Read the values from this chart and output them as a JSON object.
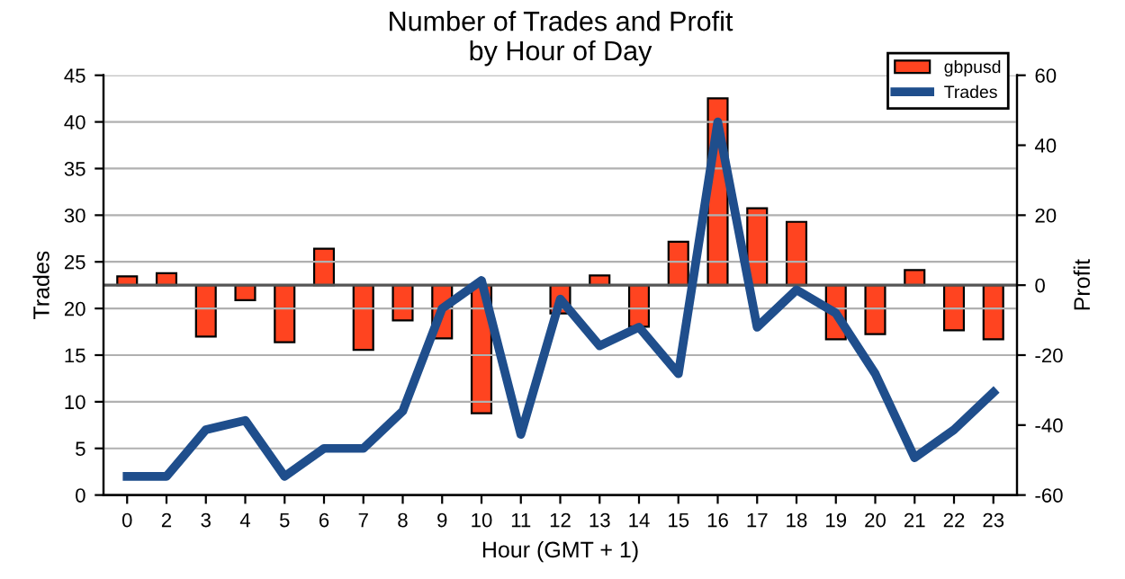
{
  "chart_data": {
    "type": "bar",
    "title": "Number of Trades and Profit\nby Hour of Day",
    "xlabel": "Hour (GMT + 1)",
    "ylabel": "Trades",
    "y2label": "Profit",
    "categories": [
      "0",
      "2",
      "3",
      "4",
      "5",
      "6",
      "7",
      "8",
      "9",
      "10",
      "11",
      "12",
      "13",
      "14",
      "15",
      "16",
      "17",
      "18",
      "19",
      "20",
      "21",
      "22",
      "23"
    ],
    "series": [
      {
        "name": "gbpusd",
        "axis": "y2",
        "color": "#ff4420",
        "values": [
          2.5,
          3.4,
          -14.7,
          -4.3,
          -16.3,
          10.4,
          -18.5,
          -10.1,
          -15.2,
          -36.6,
          null,
          -8.1,
          2.8,
          -11.9,
          12.4,
          53.4,
          22,
          18.1,
          -15.5,
          -14,
          4.3,
          -12.9,
          -15.5
        ]
      },
      {
        "name": "Trades",
        "type": "line",
        "color": "#1f4e8c",
        "values": [
          2,
          2,
          7,
          8,
          2,
          5,
          5,
          9,
          20,
          23,
          6.5,
          21,
          16,
          18,
          13,
          40,
          18,
          22,
          19.5,
          13,
          4,
          7,
          11
        ]
      }
    ],
    "ylim": [
      0,
      45
    ],
    "yticks": [
      0,
      5,
      10,
      15,
      20,
      25,
      30,
      35,
      40,
      45
    ],
    "y2lim": [
      -60,
      60
    ],
    "y2ticks": [
      -60,
      -40,
      -20,
      0,
      20,
      40,
      60
    ],
    "ref_lines": [
      {
        "axis": "y2",
        "value": 0,
        "color": "#555555"
      }
    ],
    "grid": "y",
    "legend": "top right",
    "marker": "none",
    "line_style": "solid"
  }
}
